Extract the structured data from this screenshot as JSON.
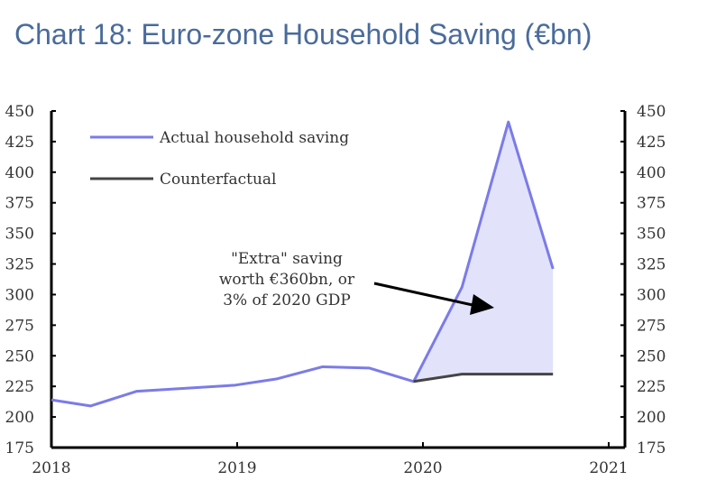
{
  "chart_data": {
    "type": "area",
    "title": "Chart 18: Euro-zone Household Saving (€bn)",
    "xlabel": "",
    "ylabel": "",
    "xlim": [
      2018,
      2021
    ],
    "ylim": [
      175,
      450
    ],
    "x_ticks": [
      "2018",
      "2019",
      "2020",
      "2021"
    ],
    "y_ticks": [
      "175",
      "200",
      "225",
      "250",
      "275",
      "300",
      "325",
      "350",
      "375",
      "400",
      "425",
      "450"
    ],
    "legend_placement": "top-left",
    "series": [
      {
        "name": "Actual household saving",
        "color": "#7b7be8",
        "points": [
          [
            2018.0,
            214
          ],
          [
            2018.21,
            209
          ],
          [
            2018.46,
            221
          ],
          [
            2018.99,
            226
          ],
          [
            2019.21,
            231
          ],
          [
            2019.46,
            241
          ],
          [
            2019.71,
            240
          ],
          [
            2019.95,
            229
          ],
          [
            2020.21,
            306
          ],
          [
            2020.46,
            441
          ],
          [
            2020.7,
            321
          ]
        ]
      },
      {
        "name": "Counterfactual",
        "color": "#444444",
        "points": [
          [
            2019.95,
            229
          ],
          [
            2020.21,
            235
          ],
          [
            2020.7,
            235
          ]
        ]
      }
    ],
    "shaded_area_color": "#e2e2fa",
    "annotation": [
      "\"Extra\" saving",
      "worth €360bn, or",
      "3% of 2020 GDP"
    ]
  }
}
